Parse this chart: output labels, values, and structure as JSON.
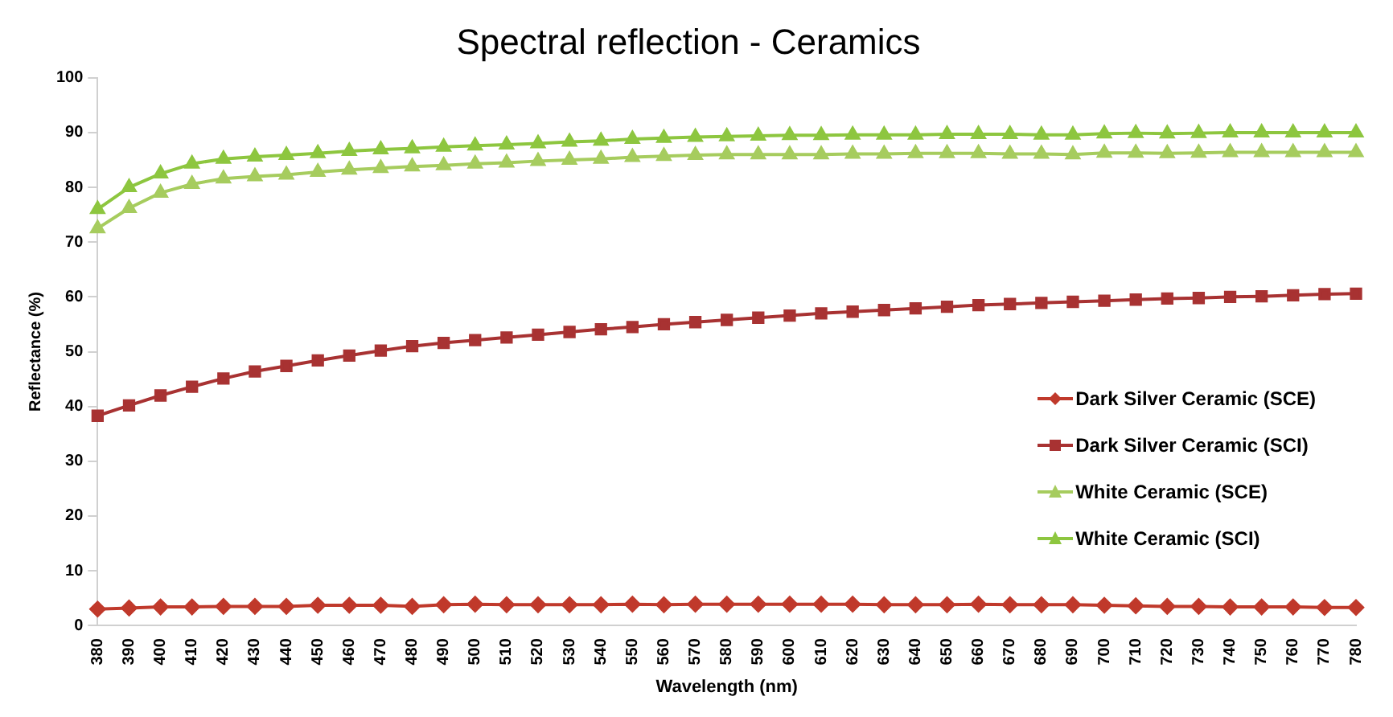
{
  "chart_data": {
    "type": "line",
    "title": "Spectral reflection - Ceramics",
    "xlabel": "Wavelength (nm)",
    "ylabel": "Reflectance (%)",
    "categories": [
      "380",
      "390",
      "400",
      "410",
      "420",
      "430",
      "440",
      "450",
      "460",
      "470",
      "480",
      "490",
      "500",
      "510",
      "520",
      "530",
      "540",
      "550",
      "560",
      "570",
      "580",
      "590",
      "600",
      "610",
      "620",
      "630",
      "640",
      "650",
      "660",
      "670",
      "680",
      "690",
      "700",
      "710",
      "720",
      "730",
      "740",
      "750",
      "760",
      "770",
      "780"
    ],
    "series": [
      {
        "name": "Dark Silver Ceramic (SCE)",
        "color": "#c0392b",
        "marker": "diamond",
        "values": [
          3.0,
          3.2,
          3.4,
          3.4,
          3.5,
          3.5,
          3.5,
          3.7,
          3.7,
          3.7,
          3.5,
          3.8,
          3.9,
          3.8,
          3.8,
          3.8,
          3.8,
          3.9,
          3.8,
          3.9,
          3.9,
          3.9,
          3.9,
          3.9,
          3.9,
          3.8,
          3.8,
          3.8,
          3.9,
          3.8,
          3.8,
          3.8,
          3.7,
          3.6,
          3.5,
          3.5,
          3.4,
          3.4,
          3.4,
          3.3,
          3.3
        ]
      },
      {
        "name": "Dark Silver Ceramic (SCI)",
        "color": "#a83232",
        "marker": "square",
        "values": [
          38.3,
          40.2,
          42,
          43.6,
          45.1,
          46.4,
          47.4,
          48.4,
          49.3,
          50.2,
          51,
          51.6,
          52.1,
          52.6,
          53.1,
          53.6,
          54.1,
          54.5,
          55,
          55.4,
          55.8,
          56.2,
          56.6,
          57,
          57.3,
          57.6,
          57.9,
          58.2,
          58.5,
          58.7,
          58.9,
          59.1,
          59.3,
          59.5,
          59.7,
          59.8,
          60,
          60.1,
          60.3,
          60.5,
          60.6
        ]
      },
      {
        "name": "White Ceramic (SCE)",
        "color": "#a6cc5e",
        "marker": "triangle",
        "values": [
          72.5,
          76.2,
          79,
          80.6,
          81.6,
          82,
          82.3,
          82.8,
          83.2,
          83.5,
          83.8,
          84,
          84.3,
          84.5,
          84.8,
          85,
          85.2,
          85.5,
          85.7,
          85.9,
          86,
          86,
          86,
          86,
          86.1,
          86.1,
          86.2,
          86.2,
          86.2,
          86.1,
          86.1,
          86,
          86.3,
          86.3,
          86.2,
          86.3,
          86.4,
          86.4,
          86.4,
          86.4,
          86.4
        ]
      },
      {
        "name": "White Ceramic (SCI)",
        "color": "#8dc63f",
        "marker": "triangle",
        "values": [
          76,
          80,
          82.5,
          84.3,
          85.2,
          85.6,
          85.9,
          86.2,
          86.6,
          86.9,
          87.1,
          87.4,
          87.6,
          87.8,
          88,
          88.3,
          88.5,
          88.8,
          89,
          89.2,
          89.3,
          89.4,
          89.5,
          89.5,
          89.6,
          89.6,
          89.6,
          89.7,
          89.7,
          89.7,
          89.6,
          89.6,
          89.8,
          89.9,
          89.8,
          89.9,
          90,
          90,
          90,
          90,
          90
        ]
      }
    ],
    "ylim": [
      0,
      100
    ],
    "yticks": [
      0,
      10,
      20,
      30,
      40,
      50,
      60,
      70,
      80,
      90,
      100
    ],
    "grid": false,
    "legend": "right",
    "line_style": "solid"
  }
}
